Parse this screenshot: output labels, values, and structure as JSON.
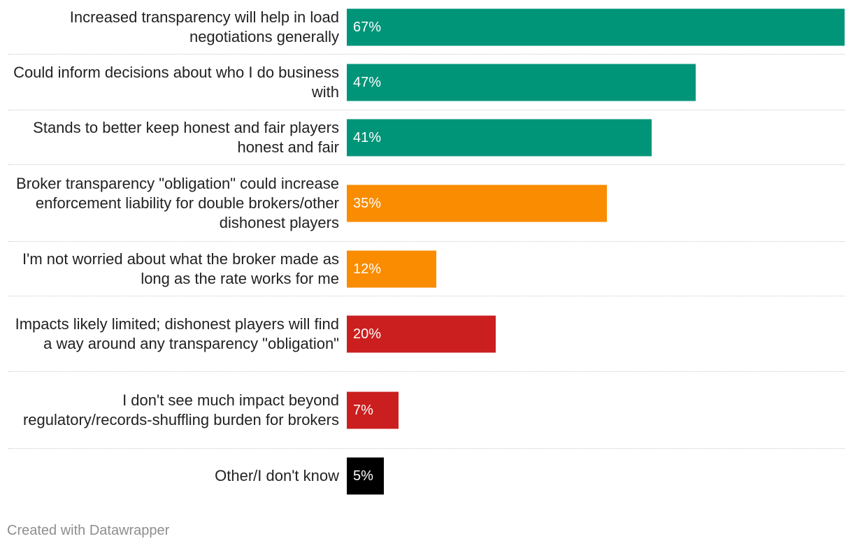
{
  "chart_data": {
    "type": "bar",
    "orientation": "horizontal",
    "xlim": [
      0,
      67
    ],
    "categories": [
      "Increased transparency will help in load negotiations generally",
      "Could inform decisions about who I do business with",
      "Stands to better keep honest and fair players honest and fair",
      "Broker transparency \"obligation\" could increase enforcement liability for double brokers/other dishonest players",
      "I'm not worried about what the broker made as long as the rate works for me",
      "Impacts likely limited; dishonest players will find a way around any transparency \"obligation\"",
      "I don't see much impact beyond regulatory/records-shuffling burden for brokers",
      "Other/I don't know"
    ],
    "values": [
      67,
      47,
      41,
      35,
      12,
      20,
      7,
      5
    ],
    "value_labels": [
      "67%",
      "47%",
      "41%",
      "35%",
      "12%",
      "20%",
      "7%",
      "5%"
    ],
    "bar_colors": [
      "#009479",
      "#009479",
      "#009479",
      "#f98c00",
      "#f98c00",
      "#cb1f1f",
      "#cb1f1f",
      "#000000"
    ]
  },
  "footer": {
    "credit": "Created with Datawrapper"
  }
}
